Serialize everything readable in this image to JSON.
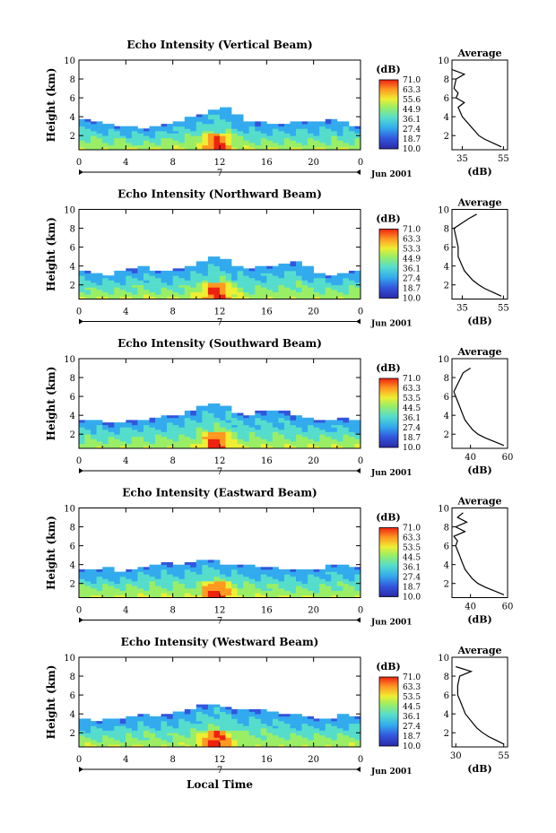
{
  "chart_data": [
    {
      "type": "heatmap",
      "title": "Echo Intensity (Vertical Beam)",
      "xlabel": "",
      "ylabel": "Height (km)",
      "x_ticks": [
        "0",
        "4",
        "8",
        "12",
        "16",
        "20",
        "0"
      ],
      "y_ticks": [
        "2",
        "4",
        "6",
        "8",
        "10"
      ],
      "xlim": [
        0,
        24
      ],
      "ylim": [
        0.5,
        10
      ],
      "day_label": "7",
      "date_label": "Jun 2001",
      "colorbar": {
        "unit": "(dB)",
        "ticks": [
          "71.0",
          "63.3",
          "55.6",
          "44.9",
          "36.1",
          "27.4",
          "18.7",
          "10.0"
        ],
        "range": [
          10.0,
          71.0
        ]
      },
      "echo_top_km": [
        3.6,
        3.4,
        3.2,
        3.0,
        2.8,
        2.7,
        2.8,
        3.1,
        3.5,
        3.8,
        4.2,
        4.6,
        4.8,
        4.2,
        3.5,
        3.3,
        3.1,
        3.2,
        3.3,
        3.4,
        3.4,
        3.6,
        3.4,
        3.0
      ],
      "profile": {
        "title": "Average",
        "xlabel": "(dB)",
        "x_ticks": [
          "35",
          "55"
        ],
        "xlim": [
          30,
          57
        ],
        "y_ticks": [
          "2",
          "4",
          "6",
          "8",
          "10"
        ],
        "ylim": [
          0.5,
          10
        ],
        "height_km": [
          0.8,
          1.2,
          1.6,
          2.0,
          2.5,
          3.0,
          3.5,
          4.0,
          4.5,
          5.0,
          5.5,
          6.0,
          6.5,
          7.0,
          8.0,
          8.5,
          9.0
        ],
        "echo_db": [
          54,
          50,
          46,
          43,
          41,
          39,
          37,
          35,
          34,
          33,
          36,
          32,
          33,
          31,
          32,
          36,
          30
        ]
      }
    },
    {
      "type": "heatmap",
      "title": "Echo Intensity (Northward Beam)",
      "xlabel": "",
      "ylabel": "Height (km)",
      "x_ticks": [
        "0",
        "4",
        "8",
        "12",
        "16",
        "20",
        "0"
      ],
      "y_ticks": [
        "2",
        "4",
        "6",
        "8",
        "10"
      ],
      "xlim": [
        0,
        24
      ],
      "ylim": [
        0.5,
        10
      ],
      "day_label": "7",
      "date_label": "Jun 2001",
      "colorbar": {
        "unit": "(dB)",
        "ticks": [
          "71.0",
          "63.3",
          "53.3",
          "44.9",
          "36.1",
          "27.4",
          "18.7",
          "10.0"
        ],
        "range": [
          10.0,
          71.0
        ]
      },
      "echo_top_km": [
        3.4,
        3.2,
        3.0,
        3.3,
        3.6,
        3.8,
        3.5,
        3.4,
        3.7,
        4.0,
        4.4,
        4.9,
        4.6,
        4.0,
        3.7,
        3.9,
        4.0,
        4.2,
        4.4,
        3.8,
        3.2,
        3.0,
        3.2,
        3.4
      ],
      "profile": {
        "title": "Average",
        "xlabel": "(dB)",
        "x_ticks": [
          "35",
          "55"
        ],
        "xlim": [
          30,
          57
        ],
        "y_ticks": [
          "2",
          "4",
          "6",
          "8",
          "10"
        ],
        "ylim": [
          0.5,
          10
        ],
        "height_km": [
          0.8,
          1.2,
          1.6,
          2.0,
          2.5,
          3.0,
          3.5,
          4.0,
          4.5,
          5.0,
          6.0,
          7.0,
          8.0,
          9.0,
          9.5
        ],
        "echo_db": [
          54,
          50,
          46,
          43,
          40,
          38,
          36,
          35,
          34,
          33,
          33,
          32,
          31,
          38,
          42
        ]
      }
    },
    {
      "type": "heatmap",
      "title": "Echo Intensity (Southward Beam)",
      "xlabel": "",
      "ylabel": "Height (km)",
      "x_ticks": [
        "0",
        "4",
        "8",
        "12",
        "16",
        "20",
        "0"
      ],
      "y_ticks": [
        "2",
        "4",
        "6",
        "8",
        "10"
      ],
      "xlim": [
        0,
        24
      ],
      "ylim": [
        0.5,
        10
      ],
      "day_label": "7",
      "date_label": "Jun 2001",
      "colorbar": {
        "unit": "(dB)",
        "ticks": [
          "71.0",
          "63.3",
          "53.5",
          "44.5",
          "36.1",
          "27.4",
          "18.7",
          "10.0"
        ],
        "range": [
          10.0,
          71.0
        ]
      },
      "echo_top_km": [
        3.5,
        3.3,
        3.1,
        3.2,
        3.3,
        3.4,
        3.6,
        3.8,
        4.0,
        4.5,
        5.0,
        5.2,
        4.9,
        4.2,
        4.0,
        4.3,
        4.5,
        4.3,
        3.9,
        3.6,
        3.4,
        3.5,
        3.6,
        3.4
      ],
      "profile": {
        "title": "Average",
        "xlabel": "(dB)",
        "x_ticks": [
          "40",
          "60"
        ],
        "xlim": [
          30,
          60
        ],
        "y_ticks": [
          "2",
          "4",
          "6",
          "8",
          "10"
        ],
        "ylim": [
          0.5,
          10
        ],
        "height_km": [
          0.8,
          1.2,
          1.6,
          2.0,
          2.5,
          3.0,
          3.5,
          4.0,
          4.5,
          5.0,
          5.5,
          6.0,
          6.5,
          8.5,
          9.0
        ],
        "echo_db": [
          58,
          53,
          48,
          44,
          41,
          39,
          37,
          36,
          35,
          34,
          33,
          32,
          31,
          36,
          40
        ]
      }
    },
    {
      "type": "heatmap",
      "title": "Echo Intensity (Eastward Beam)",
      "xlabel": "",
      "ylabel": "Height (km)",
      "x_ticks": [
        "0",
        "4",
        "8",
        "12",
        "16",
        "20",
        "0"
      ],
      "y_ticks": [
        "2",
        "4",
        "6",
        "8",
        "10"
      ],
      "xlim": [
        0,
        24
      ],
      "ylim": [
        0.5,
        10
      ],
      "day_label": "7",
      "date_label": "Jun 2001",
      "colorbar": {
        "unit": "(dB)",
        "ticks": [
          "71.0",
          "63.3",
          "53.5",
          "44.5",
          "36.1",
          "27.4",
          "18.7",
          "10.0"
        ],
        "range": [
          10.0,
          71.0
        ]
      },
      "echo_top_km": [
        3.5,
        3.3,
        3.6,
        3.2,
        3.4,
        3.7,
        3.9,
        4.1,
        3.9,
        4.2,
        4.5,
        4.3,
        4.0,
        3.9,
        3.8,
        3.6,
        3.7,
        3.5,
        3.4,
        3.3,
        3.5,
        3.8,
        4.0,
        3.6
      ],
      "profile": {
        "title": "Average",
        "xlabel": "(dB)",
        "x_ticks": [
          "40",
          "60"
        ],
        "xlim": [
          30,
          60
        ],
        "y_ticks": [
          "2",
          "4",
          "6",
          "8",
          "10"
        ],
        "ylim": [
          0.5,
          10
        ],
        "height_km": [
          0.8,
          1.2,
          1.6,
          2.0,
          2.5,
          3.0,
          3.5,
          4.0,
          4.5,
          5.0,
          5.5,
          6.0,
          6.5,
          7.0,
          7.5,
          8.0,
          8.5,
          9.0,
          9.5
        ],
        "echo_db": [
          58,
          53,
          48,
          44,
          41,
          39,
          37,
          36,
          35,
          34,
          33,
          32,
          33,
          31,
          37,
          32,
          38,
          33,
          36
        ]
      }
    },
    {
      "type": "heatmap",
      "title": "Echo Intensity (Westward Beam)",
      "xlabel": "Local Time",
      "ylabel": "Height (km)",
      "x_ticks": [
        "0",
        "4",
        "8",
        "12",
        "16",
        "20",
        "0"
      ],
      "y_ticks": [
        "2",
        "4",
        "6",
        "8",
        "10"
      ],
      "xlim": [
        0,
        24
      ],
      "ylim": [
        0.5,
        10
      ],
      "day_label": "7",
      "date_label": "Jun 2001",
      "colorbar": {
        "unit": "(dB)",
        "ticks": [
          "71.0",
          "63.3",
          "53.5",
          "44.5",
          "36.1",
          "27.4",
          "18.7",
          "10.0"
        ],
        "range": [
          10.0,
          71.0
        ]
      },
      "echo_top_km": [
        3.4,
        3.2,
        3.5,
        3.3,
        3.6,
        3.9,
        3.7,
        3.8,
        4.2,
        4.4,
        4.8,
        5.0,
        4.6,
        4.3,
        4.5,
        4.4,
        4.2,
        4.0,
        3.8,
        3.6,
        3.4,
        3.5,
        3.8,
        3.6
      ],
      "profile": {
        "title": "Average",
        "xlabel": "(dB)",
        "x_ticks": [
          "30",
          "55"
        ],
        "xlim": [
          28,
          57
        ],
        "y_ticks": [
          "2",
          "4",
          "6",
          "8",
          "10"
        ],
        "ylim": [
          0.5,
          10
        ],
        "height_km": [
          0.8,
          1.2,
          1.6,
          2.0,
          2.5,
          3.0,
          3.5,
          4.0,
          4.5,
          5.0,
          5.5,
          6.0,
          7.0,
          8.0,
          8.5,
          9.0
        ],
        "echo_db": [
          55,
          51,
          47,
          44,
          41,
          39,
          37,
          35,
          34,
          33,
          32,
          31,
          31,
          32,
          38,
          30
        ]
      }
    }
  ]
}
